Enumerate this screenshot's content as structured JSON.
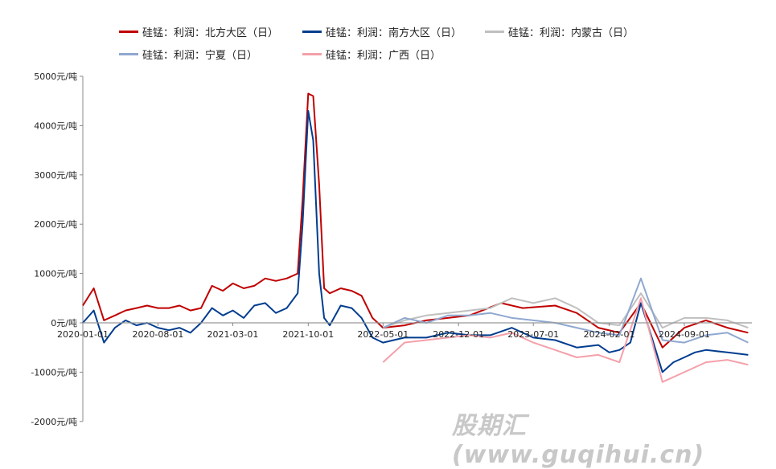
{
  "chart_data": {
    "type": "line",
    "title": "",
    "xlabel": "",
    "ylabel": "",
    "ylim": [
      -2000,
      5000
    ],
    "yticks": [
      5000,
      4000,
      3000,
      2000,
      1000,
      0,
      -1000,
      -2000
    ],
    "ytick_labels": [
      "5000元/吨",
      "4000元/吨",
      "3000元/吨",
      "2000元/吨",
      "1000元/吨",
      "0元/吨",
      "-1000元/吨",
      "-2000元/吨"
    ],
    "xticks": [
      "2020-01-01",
      "2020-08-01",
      "2021-03-01",
      "2021-10-01",
      "2022-05-01",
      "2022-12-01",
      "2023-07-01",
      "2024-02-01",
      "2024-09-01"
    ],
    "legend_position": "top",
    "grid": false,
    "series": [
      {
        "name": "硅锰：利润：北方大区（日）",
        "color": "#c00000",
        "points": [
          [
            "2020-01-01",
            350
          ],
          [
            "2020-02-01",
            700
          ],
          [
            "2020-03-01",
            50
          ],
          [
            "2020-04-01",
            150
          ],
          [
            "2020-05-01",
            250
          ],
          [
            "2020-06-01",
            300
          ],
          [
            "2020-07-01",
            350
          ],
          [
            "2020-08-01",
            300
          ],
          [
            "2020-09-01",
            300
          ],
          [
            "2020-10-01",
            350
          ],
          [
            "2020-11-01",
            250
          ],
          [
            "2020-12-01",
            300
          ],
          [
            "2021-01-01",
            750
          ],
          [
            "2021-02-01",
            650
          ],
          [
            "2021-03-01",
            800
          ],
          [
            "2021-04-01",
            700
          ],
          [
            "2021-05-01",
            750
          ],
          [
            "2021-06-01",
            900
          ],
          [
            "2021-07-01",
            850
          ],
          [
            "2021-08-01",
            900
          ],
          [
            "2021-09-01",
            1000
          ],
          [
            "2021-09-15",
            2500
          ],
          [
            "2021-10-01",
            4650
          ],
          [
            "2021-10-15",
            4600
          ],
          [
            "2021-11-01",
            2800
          ],
          [
            "2021-11-15",
            700
          ],
          [
            "2021-12-01",
            600
          ],
          [
            "2022-01-01",
            700
          ],
          [
            "2022-02-01",
            650
          ],
          [
            "2022-03-01",
            550
          ],
          [
            "2022-04-01",
            100
          ],
          [
            "2022-05-01",
            -100
          ],
          [
            "2022-07-01",
            -50
          ],
          [
            "2022-09-01",
            50
          ],
          [
            "2022-11-01",
            100
          ],
          [
            "2023-01-01",
            150
          ],
          [
            "2023-04-01",
            400
          ],
          [
            "2023-06-01",
            300
          ],
          [
            "2023-09-01",
            350
          ],
          [
            "2023-11-01",
            200
          ],
          [
            "2024-01-01",
            -100
          ],
          [
            "2024-03-01",
            -200
          ],
          [
            "2024-05-01",
            400
          ],
          [
            "2024-07-01",
            -500
          ],
          [
            "2024-09-01",
            -100
          ],
          [
            "2024-11-01",
            50
          ],
          [
            "2025-01-01",
            -100
          ],
          [
            "2025-03-01",
            -200
          ]
        ]
      },
      {
        "name": "硅锰：利润：南方大区（日）",
        "color": "#003d8f",
        "points": [
          [
            "2020-01-01",
            0
          ],
          [
            "2020-02-01",
            250
          ],
          [
            "2020-03-01",
            -400
          ],
          [
            "2020-04-01",
            -100
          ],
          [
            "2020-05-01",
            50
          ],
          [
            "2020-06-01",
            -50
          ],
          [
            "2020-07-01",
            0
          ],
          [
            "2020-08-01",
            -100
          ],
          [
            "2020-09-01",
            -150
          ],
          [
            "2020-10-01",
            -100
          ],
          [
            "2020-11-01",
            -200
          ],
          [
            "2020-12-01",
            0
          ],
          [
            "2021-01-01",
            300
          ],
          [
            "2021-02-01",
            150
          ],
          [
            "2021-03-01",
            250
          ],
          [
            "2021-04-01",
            100
          ],
          [
            "2021-05-01",
            350
          ],
          [
            "2021-06-01",
            400
          ],
          [
            "2021-07-01",
            200
          ],
          [
            "2021-08-01",
            300
          ],
          [
            "2021-09-01",
            600
          ],
          [
            "2021-09-15",
            2000
          ],
          [
            "2021-10-01",
            4300
          ],
          [
            "2021-10-15",
            3700
          ],
          [
            "2021-11-01",
            1000
          ],
          [
            "2021-11-15",
            100
          ],
          [
            "2021-12-01",
            -50
          ],
          [
            "2022-01-01",
            350
          ],
          [
            "2022-02-01",
            300
          ],
          [
            "2022-03-01",
            100
          ],
          [
            "2022-04-01",
            -300
          ],
          [
            "2022-05-01",
            -400
          ],
          [
            "2022-07-01",
            -300
          ],
          [
            "2022-09-01",
            -300
          ],
          [
            "2022-11-01",
            -200
          ],
          [
            "2023-01-01",
            -250
          ],
          [
            "2023-03-01",
            -250
          ],
          [
            "2023-05-01",
            -100
          ],
          [
            "2023-07-01",
            -300
          ],
          [
            "2023-09-01",
            -350
          ],
          [
            "2023-11-01",
            -500
          ],
          [
            "2024-01-01",
            -450
          ],
          [
            "2024-02-01",
            -600
          ],
          [
            "2024-03-01",
            -550
          ],
          [
            "2024-04-01",
            -400
          ],
          [
            "2024-05-01",
            400
          ],
          [
            "2024-06-01",
            -300
          ],
          [
            "2024-07-01",
            -1000
          ],
          [
            "2024-08-01",
            -800
          ],
          [
            "2024-09-01",
            -700
          ],
          [
            "2024-10-01",
            -600
          ],
          [
            "2024-11-01",
            -550
          ],
          [
            "2025-01-01",
            -600
          ],
          [
            "2025-03-01",
            -650
          ]
        ]
      },
      {
        "name": "硅锰：利润：内蒙古（日）",
        "color": "#bfbfbf",
        "points": [
          [
            "2022-05-01",
            -100
          ],
          [
            "2022-07-01",
            50
          ],
          [
            "2022-09-01",
            150
          ],
          [
            "2022-11-01",
            200
          ],
          [
            "2023-01-01",
            250
          ],
          [
            "2023-03-01",
            300
          ],
          [
            "2023-05-01",
            500
          ],
          [
            "2023-07-01",
            400
          ],
          [
            "2023-09-01",
            500
          ],
          [
            "2023-11-01",
            300
          ],
          [
            "2024-01-01",
            0
          ],
          [
            "2024-03-01",
            -50
          ],
          [
            "2024-05-01",
            600
          ],
          [
            "2024-07-01",
            -100
          ],
          [
            "2024-09-01",
            100
          ],
          [
            "2024-11-01",
            100
          ],
          [
            "2025-01-01",
            50
          ],
          [
            "2025-03-01",
            -100
          ]
        ]
      },
      {
        "name": "硅锰：利润：宁夏（日）",
        "color": "#8fa8d0",
        "points": [
          [
            "2022-05-01",
            -100
          ],
          [
            "2022-07-01",
            100
          ],
          [
            "2022-09-01",
            0
          ],
          [
            "2022-11-01",
            150
          ],
          [
            "2023-01-01",
            150
          ],
          [
            "2023-03-01",
            200
          ],
          [
            "2023-05-01",
            100
          ],
          [
            "2023-07-01",
            50
          ],
          [
            "2023-09-01",
            0
          ],
          [
            "2023-11-01",
            -100
          ],
          [
            "2024-01-01",
            -200
          ],
          [
            "2024-03-01",
            -250
          ],
          [
            "2024-05-01",
            900
          ],
          [
            "2024-07-01",
            -350
          ],
          [
            "2024-09-01",
            -400
          ],
          [
            "2024-11-01",
            -250
          ],
          [
            "2025-01-01",
            -200
          ],
          [
            "2025-03-01",
            -400
          ]
        ]
      },
      {
        "name": "硅锰：利润：广西（日）",
        "color": "#f4a0aa",
        "points": [
          [
            "2022-05-01",
            -800
          ],
          [
            "2022-07-01",
            -400
          ],
          [
            "2022-09-01",
            -350
          ],
          [
            "2022-11-01",
            -300
          ],
          [
            "2023-01-01",
            -250
          ],
          [
            "2023-03-01",
            -300
          ],
          [
            "2023-05-01",
            -200
          ],
          [
            "2023-07-01",
            -400
          ],
          [
            "2023-09-01",
            -550
          ],
          [
            "2023-11-01",
            -700
          ],
          [
            "2024-01-01",
            -650
          ],
          [
            "2024-03-01",
            -800
          ],
          [
            "2024-05-01",
            500
          ],
          [
            "2024-07-01",
            -1200
          ],
          [
            "2024-09-01",
            -1000
          ],
          [
            "2024-11-01",
            -800
          ],
          [
            "2025-01-01",
            -750
          ],
          [
            "2025-03-01",
            -850
          ]
        ]
      }
    ]
  },
  "watermark": "股期汇(www.guqihui.cn)"
}
